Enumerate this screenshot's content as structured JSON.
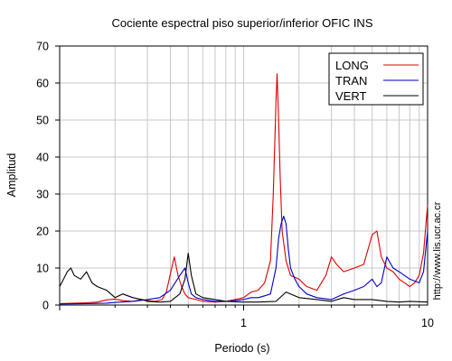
{
  "chart_data": {
    "type": "line",
    "title": "Cociente espectral piso superior/inferior  OFIC INS",
    "xlabel": "Periodo (s)",
    "ylabel": "Amplitud",
    "x_scale": "log",
    "xlim": [
      0.1,
      10
    ],
    "ylim": [
      0,
      70
    ],
    "x_tick_labels": [
      "1",
      "10"
    ],
    "y_ticks": [
      0,
      10,
      20,
      30,
      40,
      50,
      60,
      70
    ],
    "grid": true,
    "legend_position": "top-right",
    "side_note": "http://www.lis.ucr.ac.cr",
    "series": [
      {
        "name": "LONG",
        "color": "#dd0000",
        "x": [
          0.1,
          0.12,
          0.14,
          0.16,
          0.18,
          0.2,
          0.22,
          0.25,
          0.28,
          0.3,
          0.33,
          0.36,
          0.38,
          0.4,
          0.42,
          0.44,
          0.46,
          0.48,
          0.5,
          0.55,
          0.6,
          0.7,
          0.8,
          0.9,
          1.0,
          1.1,
          1.2,
          1.3,
          1.4,
          1.45,
          1.5,
          1.52,
          1.55,
          1.58,
          1.62,
          1.7,
          1.8,
          2.0,
          2.2,
          2.5,
          2.8,
          3.0,
          3.2,
          3.5,
          4.0,
          4.5,
          5.0,
          5.3,
          5.6,
          6.0,
          6.5,
          7.0,
          7.5,
          8.0,
          8.5,
          9.0,
          9.5,
          9.8,
          10.0
        ],
        "y": [
          0.4,
          0.5,
          0.6,
          0.8,
          1.4,
          1.6,
          1.2,
          1.0,
          1.5,
          1.2,
          1.0,
          1.5,
          3.5,
          8.5,
          13.0,
          8.0,
          5.0,
          3.0,
          2.0,
          1.5,
          1.0,
          0.8,
          1.0,
          1.5,
          2.0,
          3.5,
          4.0,
          6.0,
          12.0,
          30.0,
          55.0,
          62.5,
          50.0,
          35.0,
          20.0,
          12.0,
          8.0,
          7.0,
          5.0,
          4.0,
          8.0,
          13.0,
          11.0,
          9.0,
          10.0,
          11.0,
          19.0,
          20.0,
          13.0,
          10.0,
          9.0,
          7.0,
          6.0,
          5.0,
          6.0,
          8.0,
          14.0,
          22.0,
          27.0
        ]
      },
      {
        "name": "TRAN",
        "color": "#0000cc",
        "x": [
          0.1,
          0.14,
          0.18,
          0.2,
          0.25,
          0.3,
          0.35,
          0.4,
          0.45,
          0.48,
          0.5,
          0.52,
          0.55,
          0.6,
          0.7,
          0.8,
          0.9,
          1.0,
          1.1,
          1.2,
          1.3,
          1.4,
          1.5,
          1.55,
          1.6,
          1.65,
          1.7,
          1.75,
          1.8,
          1.9,
          2.0,
          2.2,
          2.5,
          3.0,
          3.5,
          4.0,
          4.5,
          5.0,
          5.3,
          5.6,
          6.0,
          6.5,
          7.0,
          8.0,
          9.0,
          9.5,
          10.0
        ],
        "y": [
          0.3,
          0.4,
          0.5,
          0.7,
          1.0,
          1.5,
          2.0,
          4.0,
          8.0,
          10.0,
          6.0,
          3.0,
          2.0,
          1.5,
          1.0,
          1.0,
          1.2,
          1.5,
          2.0,
          2.0,
          2.5,
          3.0,
          10.0,
          18.0,
          22.0,
          24.0,
          22.0,
          15.0,
          10.0,
          7.0,
          5.0,
          3.0,
          2.0,
          1.5,
          3.0,
          4.0,
          5.0,
          7.0,
          5.0,
          6.0,
          13.0,
          10.0,
          9.0,
          7.0,
          6.0,
          9.0,
          20.0
        ]
      },
      {
        "name": "VERT",
        "color": "#000000",
        "x": [
          0.1,
          0.105,
          0.11,
          0.115,
          0.12,
          0.13,
          0.14,
          0.15,
          0.16,
          0.18,
          0.2,
          0.22,
          0.25,
          0.28,
          0.3,
          0.35,
          0.4,
          0.45,
          0.48,
          0.5,
          0.52,
          0.55,
          0.6,
          0.7,
          0.8,
          1.0,
          1.2,
          1.5,
          1.7,
          2.0,
          2.5,
          3.0,
          3.5,
          4.0,
          5.0,
          6.0,
          7.0,
          8.0,
          10.0
        ],
        "y": [
          5.0,
          7.0,
          9.0,
          10.0,
          8.0,
          7.0,
          9.0,
          6.0,
          5.0,
          4.0,
          2.0,
          3.0,
          2.0,
          1.5,
          1.0,
          0.8,
          1.0,
          3.0,
          7.0,
          14.0,
          8.0,
          3.0,
          2.0,
          1.5,
          1.0,
          0.8,
          0.8,
          1.0,
          3.5,
          2.0,
          1.5,
          1.0,
          2.0,
          1.5,
          1.5,
          1.0,
          0.8,
          1.0,
          0.8
        ]
      }
    ]
  }
}
